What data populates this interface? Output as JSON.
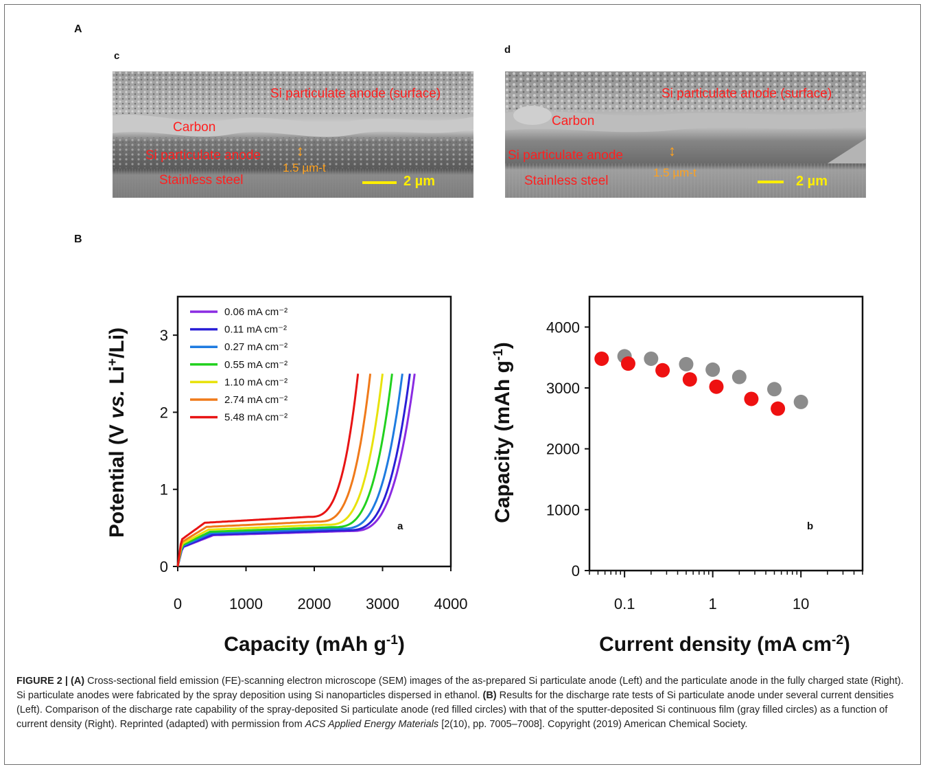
{
  "panel_a": {
    "label": "A",
    "left_image": {
      "tag": "c",
      "surface_label": "Si particulate anode (surface)",
      "carbon_label": "Carbon",
      "anode_label": "Si particulate anode",
      "thickness_label": "1.5 µm-t",
      "substrate_label": "Stainless steel",
      "scale_label": "2 µm"
    },
    "right_image": {
      "tag": "d",
      "surface_label": "Si particulate anode (surface)",
      "carbon_label": "Carbon",
      "anode_label": "Si particulate anode",
      "thickness_label": "1.5 µm-t",
      "substrate_label": "Stainless steel",
      "scale_label": "2 µm"
    }
  },
  "panel_b": {
    "label": "B"
  },
  "chart_data": [
    {
      "type": "line",
      "tag": "a",
      "xlabel": "Capacity (mAh g⁻¹)",
      "ylabel": "Potential (V vs. Li⁺/Li)",
      "xlim": [
        0,
        4000
      ],
      "ylim": [
        0,
        3.5
      ],
      "xticks": [
        "0",
        "1000",
        "2000",
        "3000",
        "4000"
      ],
      "yticks": [
        "0",
        "1",
        "2",
        "3"
      ],
      "legend_position": "top-left",
      "series": [
        {
          "name": "0.06 mA cm⁻²",
          "color": "#8a2be2",
          "end_capacity": 3470,
          "plateau": 0.45
        },
        {
          "name": "0.11 mA cm⁻²",
          "color": "#2a1fd6",
          "end_capacity": 3400,
          "plateau": 0.46
        },
        {
          "name": "0.27 mA cm⁻²",
          "color": "#1e7be0",
          "end_capacity": 3290,
          "plateau": 0.48
        },
        {
          "name": "0.55 mA cm⁻²",
          "color": "#22d11f",
          "end_capacity": 3140,
          "plateau": 0.5
        },
        {
          "name": "1.10 mA cm⁻²",
          "color": "#e8e20c",
          "end_capacity": 3000,
          "plateau": 0.53
        },
        {
          "name": "2.74 mA cm⁻²",
          "color": "#f07a1a",
          "end_capacity": 2820,
          "plateau": 0.57
        },
        {
          "name": "5.48 mA cm⁻²",
          "color": "#e81414",
          "end_capacity": 2640,
          "plateau": 0.63
        }
      ]
    },
    {
      "type": "scatter",
      "tag": "b",
      "xlabel": "Current density (mA cm⁻²)",
      "ylabel": "Capacity (mAh g⁻¹)",
      "xscale": "log",
      "xlim": [
        0.04,
        50
      ],
      "ylim": [
        0,
        4500
      ],
      "xticks": [
        "0.1",
        "1",
        "10"
      ],
      "yticks": [
        "0",
        "1000",
        "2000",
        "3000",
        "4000"
      ],
      "series": [
        {
          "color": "#8c8c8c",
          "x": [
            0.1,
            0.2,
            0.5,
            1.0,
            2.0,
            5.0,
            10.0
          ],
          "y": [
            3520,
            3480,
            3390,
            3300,
            3180,
            2980,
            2770
          ]
        },
        {
          "color": "#ee1111",
          "x": [
            0.055,
            0.11,
            0.27,
            0.55,
            1.1,
            2.74,
            5.48
          ],
          "y": [
            3480,
            3400,
            3290,
            3140,
            3020,
            2820,
            2660
          ]
        }
      ]
    }
  ],
  "caption": {
    "fig_label": "FIGURE 2 |",
    "a_label": "(A)",
    "a_text": " Cross-sectional field emission (FE)-scanning electron microscope (SEM) images of the as-prepared Si particulate anode (Left) and the particulate anode in the fully charged state (Right). Si particulate anodes were fabricated by the spray deposition using Si nanoparticles dispersed in ethanol. ",
    "b_label": "(B)",
    "b_text": " Results for the discharge rate tests of Si particulate anode under several current densities (Left). Comparison of the discharge rate capability of the spray-deposited Si particulate anode (red filled circles) with that of the sputter-deposited Si continuous film (gray filled circles) as a function of current density (Right). Reprinted (adapted) with permission from ",
    "journal": "ACS Applied Energy Materials",
    "tail": " [2(10), pp. 7005–7008]. Copyright (2019) American Chemical Society."
  }
}
